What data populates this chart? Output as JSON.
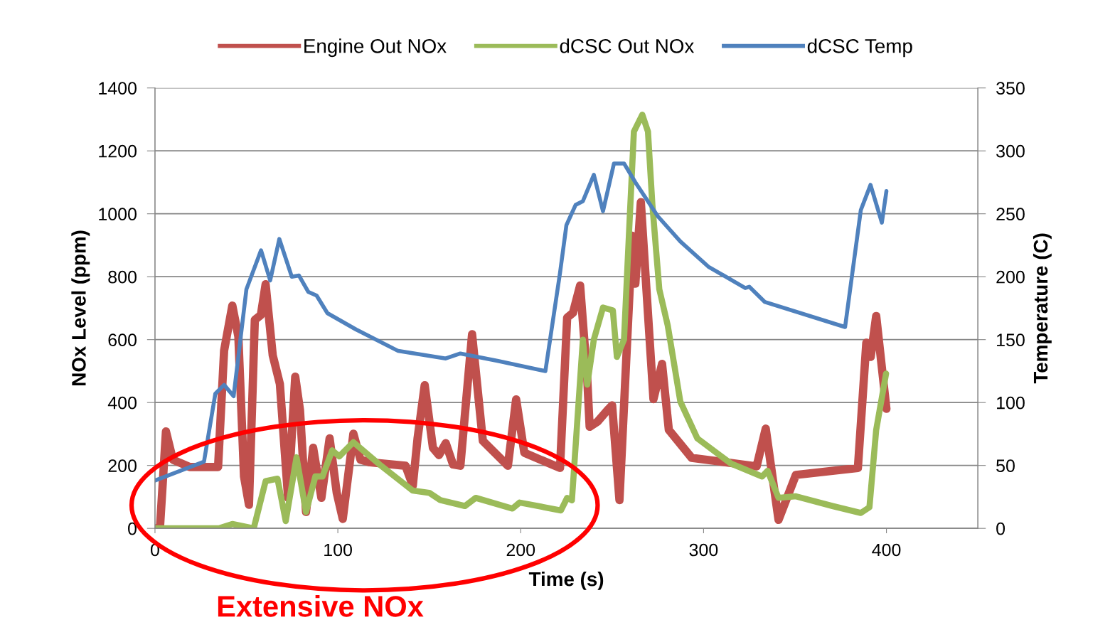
{
  "chart_data": {
    "type": "line",
    "xlabel": "Time (s)",
    "ylabel": "NOx Level (ppm)",
    "y2label": "Temperature (C)",
    "xlim": [
      0,
      450
    ],
    "xticks": [
      0,
      100,
      200,
      300,
      400
    ],
    "ylim": [
      0,
      1400
    ],
    "yticks": [
      0,
      200,
      400,
      600,
      800,
      1000,
      1200,
      1400
    ],
    "y2lim": [
      0,
      350
    ],
    "y2ticks": [
      0,
      50,
      100,
      150,
      200,
      250,
      300,
      350
    ],
    "grid": "y",
    "legend": "top",
    "marker": "none",
    "line_style": "solid",
    "annotations": [
      "Extensive NOx"
    ],
    "series": [
      {
        "name": "Engine Out NOx",
        "color": "#c0504d",
        "x": [
          0,
          2.7,
          6,
          9.8,
          19,
          34.5,
          37.8,
          42.3,
          45.6,
          48.7,
          51.4,
          54.6,
          57.9,
          60.5,
          64.4,
          68.3,
          72.8,
          76.7,
          79.3,
          82.6,
          86.5,
          91,
          95.5,
          99.4,
          102.7,
          108.5,
          112.4,
          117.6,
          137,
          141,
          143.6,
          147.5,
          152,
          155.3,
          159,
          163,
          167,
          173.4,
          179.3,
          193,
          197.5,
          202,
          221.5,
          225.4,
          228.6,
          232.5,
          236.4,
          237.7,
          242,
          247.5,
          250,
          254,
          261,
          262.7,
          265.7,
          272.6,
          277.3,
          281,
          293.5,
          329,
          334,
          341,
          350.5,
          384.4,
          389,
          391.4,
          394.4,
          400
        ],
        "values": [
          0,
          0,
          308,
          218,
          195,
          195,
          565,
          708,
          610,
          165,
          75,
          663,
          678,
          776,
          550,
          459,
          97,
          482,
          376,
          52,
          256,
          97,
          286,
          113,
          30,
          301,
          218,
          210,
          199,
          136,
          286,
          455,
          256,
          233,
          271,
          203,
          199,
          617,
          278,
          199,
          410,
          240,
          192,
          670,
          685,
          772,
          475,
          323,
          339,
          376,
          391,
          90,
          930,
          778,
          1037,
          411,
          523,
          313,
          224,
          197,
          317,
          27,
          170,
          192,
          590,
          545,
          675,
          380
        ]
      },
      {
        "name": "dCSC Out NOx",
        "color": "#9bbb59",
        "x": [
          0,
          35,
          42.3,
          54,
          60.5,
          67,
          71.5,
          77.4,
          82.6,
          87.7,
          91.6,
          96.9,
          100.8,
          108.5,
          122.8,
          141,
          150,
          156,
          169.5,
          175.4,
          195.5,
          199.4,
          222,
          225.4,
          228,
          234,
          236.4,
          240,
          245,
          250.4,
          252.6,
          256.5,
          259.6,
          261.9,
          266.5,
          269.6,
          272,
          275.8,
          280.4,
          287.3,
          296.6,
          315,
          332,
          335,
          341,
          350.5,
          370.5,
          386,
          390.7,
          394.4,
          399.8
        ],
        "values": [
          0,
          0,
          14,
          0,
          150,
          158,
          23,
          226,
          52,
          165,
          165,
          248,
          229,
          274,
          203,
          120,
          113,
          90,
          71,
          97,
          63,
          82,
          57,
          97,
          89,
          600,
          457,
          600,
          702,
          693,
          545,
          600,
          984,
          1261,
          1315,
          1261,
          1029,
          760,
          645,
          403,
          286,
          206,
          165,
          183,
          97,
          102,
          71,
          49,
          67,
          313,
          492
        ]
      },
      {
        "name": "dCSC Temp",
        "color": "#4f81bd",
        "axis": "y2",
        "x": [
          0,
          26.8,
          33,
          37.8,
          43,
          50,
          58,
          63,
          68,
          74.8,
          78.7,
          83.8,
          88.4,
          94.3,
          110,
          133,
          159,
          167,
          187.7,
          213.5,
          221.5,
          225,
          230,
          234,
          240,
          245,
          251,
          256.5,
          262.7,
          275,
          287.3,
          302.6,
          322.8,
          325,
          333.4,
          377.4,
          386,
          391.3,
          397.5,
          400
        ],
        "values": [
          38,
          53,
          107,
          114,
          105,
          190,
          221,
          197,
          230,
          200,
          201,
          188,
          185,
          171,
          158,
          141,
          135,
          139,
          133,
          125,
          203,
          241,
          257,
          260,
          281,
          252,
          290,
          290,
          275,
          248,
          228,
          208,
          191,
          192,
          180,
          160,
          253,
          273,
          243,
          268
        ]
      }
    ]
  }
}
